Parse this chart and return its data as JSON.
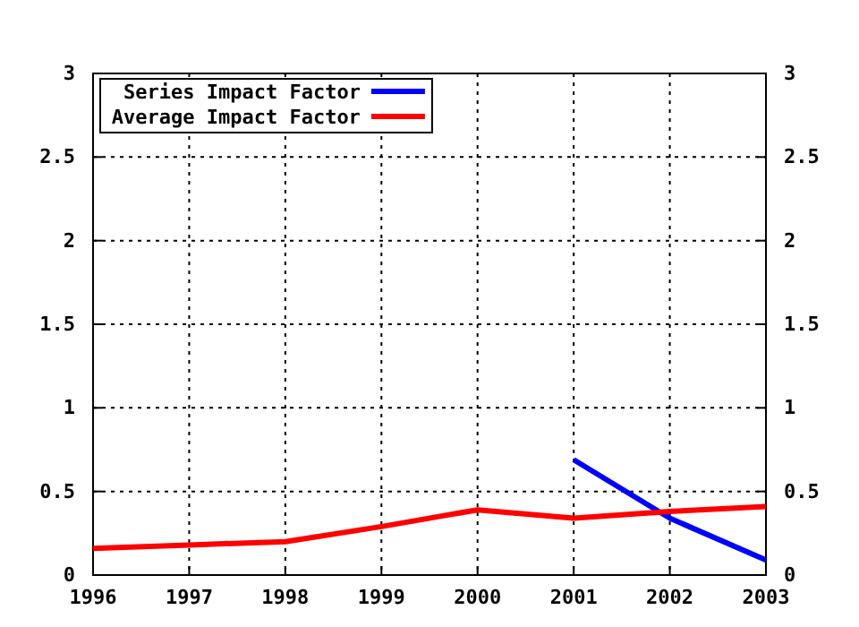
{
  "chart_data": {
    "type": "line",
    "x": [
      1996,
      1997,
      1998,
      1999,
      2000,
      2001,
      2002,
      2003
    ],
    "series": [
      {
        "name": "Series Impact Factor",
        "color": "#0000ff",
        "values": [
          null,
          null,
          null,
          null,
          null,
          0.69,
          0.34,
          0.09
        ]
      },
      {
        "name": "Average Impact Factor",
        "color": "#ff0000",
        "values": [
          0.16,
          0.18,
          0.2,
          0.29,
          0.39,
          0.34,
          0.38,
          0.41
        ]
      }
    ],
    "xlim": [
      1996,
      2003
    ],
    "xticks": [
      1996,
      1997,
      1998,
      1999,
      2000,
      2001,
      2002,
      2003
    ],
    "ylim": [
      0,
      3
    ],
    "yticks": [
      0,
      0.5,
      1,
      1.5,
      2,
      2.5,
      3
    ],
    "y2lim": [
      0,
      3
    ],
    "y2ticks": [
      0,
      0.5,
      1,
      1.5,
      2,
      2.5,
      3
    ],
    "grid": true,
    "legend": "top left",
    "marker": "none",
    "line_style": "solid"
  }
}
